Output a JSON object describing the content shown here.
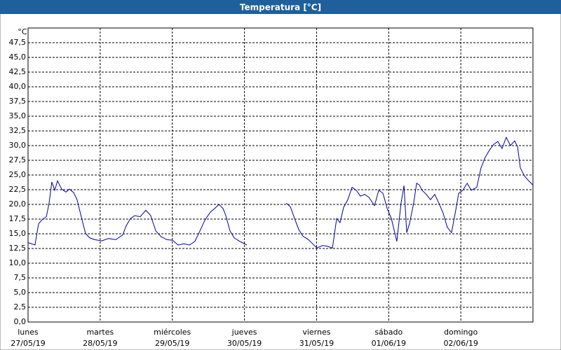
{
  "chart_data": {
    "type": "line",
    "title": "Temperatura [°C]",
    "y_unit": "°C",
    "xlim": [
      0,
      168
    ],
    "ylim": [
      0,
      50
    ],
    "grid": true,
    "xticks": [
      {
        "value": 0,
        "label": "lunes",
        "date": "27/05/19"
      },
      {
        "value": 24,
        "label": "martes",
        "date": "28/05/19"
      },
      {
        "value": 48,
        "label": "miércoles",
        "date": "29/05/19"
      },
      {
        "value": 72,
        "label": "jueves",
        "date": "30/05/19"
      },
      {
        "value": 96,
        "label": "viernes",
        "date": "31/05/19"
      },
      {
        "value": 120,
        "label": "sábado",
        "date": "01/06/19"
      },
      {
        "value": 144,
        "label": "domingo",
        "date": "02/06/19"
      }
    ],
    "yticks": [
      {
        "value": 0,
        "label": "0,0"
      },
      {
        "value": 2.5,
        "label": "2,5"
      },
      {
        "value": 5,
        "label": "5,0"
      },
      {
        "value": 7.5,
        "label": "7,5"
      },
      {
        "value": 10,
        "label": "10,0"
      },
      {
        "value": 12.5,
        "label": "12,5"
      },
      {
        "value": 15,
        "label": "15,0"
      },
      {
        "value": 17.5,
        "label": "17,5"
      },
      {
        "value": 20,
        "label": "20,0"
      },
      {
        "value": 22.5,
        "label": "22,5"
      },
      {
        "value": 25,
        "label": "25,0"
      },
      {
        "value": 27.5,
        "label": "27,5"
      },
      {
        "value": 30,
        "label": "30,0"
      },
      {
        "value": 32.5,
        "label": "32,5"
      },
      {
        "value": 35,
        "label": "35,0"
      },
      {
        "value": 37.5,
        "label": "37,5"
      },
      {
        "value": 40,
        "label": "40,0"
      },
      {
        "value": 42.5,
        "label": "42,5"
      },
      {
        "value": 45,
        "label": "45,0"
      },
      {
        "value": 47.5,
        "label": "47,5"
      }
    ],
    "series": [
      {
        "color": "#0000a0",
        "x": [
          0,
          2.3,
          3.5,
          4.7,
          6.1,
          7,
          7.9,
          8.9,
          9.8,
          11.2,
          12.6,
          13.8,
          15.2,
          16.3,
          17.7,
          19.1,
          20.5,
          22.2,
          24.5,
          26.8,
          29.2,
          31.5,
          32.7,
          34.1,
          35.5,
          37.3,
          39.2,
          40.8,
          42.5,
          44.3,
          46.2,
          48.1,
          49.9,
          51.8,
          53.7,
          55.5,
          57.4,
          58.8,
          60.7,
          62.1,
          63.5,
          64.9,
          65.8,
          67.2,
          68.6,
          70.5,
          72.8,
          76,
          85.9,
          87.3,
          88.7,
          90.1,
          91.5,
          93.3,
          94.7,
          96.1,
          98,
          99.4,
          101.3,
          102.7,
          103.8,
          105,
          106.4,
          107.8,
          109.2,
          110.6,
          112,
          113.4,
          115.3,
          116.7,
          118.1,
          119.5,
          120.9,
          122.7,
          124.1,
          125.1,
          126,
          126.9,
          128.3,
          129.3,
          130.2,
          131.1,
          132.5,
          133.9,
          135.3,
          136.7,
          138.1,
          139.5,
          140.9,
          142.3,
          143.3,
          144.7,
          146.1,
          147.5,
          149.3,
          150.7,
          152.1,
          153.5,
          154.9,
          156.3,
          157.7,
          159.1,
          160.5,
          161.9,
          162.9,
          163.8,
          165.2,
          166.6,
          168
        ],
        "values": [
          13.5,
          13.1,
          16.7,
          17.4,
          17.9,
          20.2,
          23.8,
          22.4,
          24.0,
          22.6,
          22.1,
          22.6,
          22.0,
          20.8,
          17.9,
          15.1,
          14.3,
          14.0,
          13.8,
          14.2,
          14.0,
          14.8,
          16.4,
          17.6,
          18.1,
          17.9,
          19.0,
          18.1,
          15.5,
          14.5,
          14.0,
          13.9,
          13.1,
          13.3,
          13.1,
          13.7,
          15.7,
          17.3,
          18.7,
          19.3,
          20.0,
          19.3,
          18.1,
          15.5,
          14.3,
          13.7,
          13.1,
          null,
          20.2,
          19.6,
          17.6,
          15.7,
          14.6,
          14.0,
          13.3,
          12.6,
          13.0,
          12.9,
          12.6,
          17.6,
          16.9,
          19.5,
          20.8,
          22.9,
          22.4,
          21.4,
          21.7,
          21.2,
          19.8,
          22.4,
          21.9,
          19.3,
          17.6,
          13.7,
          20.2,
          23.2,
          15.2,
          16.7,
          20.2,
          23.6,
          23.3,
          22.4,
          21.7,
          20.8,
          21.7,
          20.2,
          18.5,
          16.1,
          15.2,
          19.0,
          21.9,
          22.4,
          23.6,
          22.4,
          22.9,
          26.2,
          28.0,
          29.2,
          30.2,
          30.7,
          29.5,
          31.4,
          30.0,
          30.8,
          29.8,
          26.2,
          24.8,
          24.0,
          23.3
        ]
      }
    ]
  }
}
